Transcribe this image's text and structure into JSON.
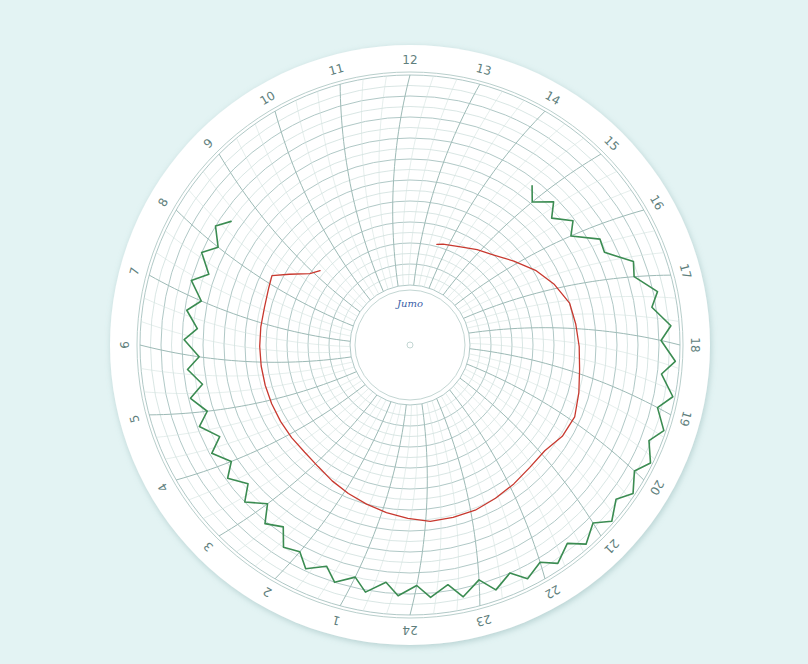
{
  "chart_data": {
    "type": "polar_line",
    "title": "Jumo",
    "xlim": [
      0,
      24
    ],
    "xticks": [
      1,
      2,
      3,
      4,
      5,
      6,
      7,
      8,
      9,
      10,
      11,
      12,
      13,
      14,
      15,
      16,
      17,
      18,
      19,
      20,
      21,
      22,
      23,
      24
    ],
    "ylim": [
      0,
      100
    ],
    "yticks": [
      0,
      5,
      10,
      15,
      20,
      25,
      30,
      35,
      40,
      45,
      50,
      55,
      60,
      65,
      70,
      75,
      80,
      85,
      90,
      95,
      100
    ],
    "grid": true,
    "tick_labels": "x",
    "series": [
      {
        "color": "#3b8c52",
        "x": [
          14.75,
          15,
          15.25,
          15.5,
          15.75,
          16,
          16.25,
          16.5,
          16.75,
          17,
          17.25,
          17.5,
          17.75,
          18,
          18.25,
          18.5,
          18.75,
          19,
          19.25,
          19.5,
          19.75,
          20,
          20.25,
          20.5,
          20.75,
          21,
          21.25,
          21.5,
          21.75,
          22,
          22.25,
          22.5,
          22.75,
          23,
          23.25,
          23.5,
          23.75,
          24,
          0.25,
          0.5,
          0.75,
          1,
          1.25,
          1.5,
          1.75,
          2,
          2.25,
          2.5,
          2.75,
          3,
          3.25,
          3.5,
          3.75,
          4,
          4.25,
          4.5,
          4.75,
          5,
          5.25,
          5.5,
          5.75,
          6,
          6.25,
          6.5,
          6.75,
          7,
          7.25,
          7.5,
          7.75,
          8,
          8.25,
          8.5
        ],
        "values": [
          67,
          61,
          68,
          62,
          69,
          64,
          75,
          74,
          85,
          83,
          92,
          88,
          96,
          91,
          98,
          92,
          99,
          93,
          99,
          94,
          99,
          94,
          99,
          94,
          99,
          93,
          98,
          92,
          97,
          92,
          96,
          90,
          95,
          88,
          94,
          87,
          92,
          86,
          91,
          85,
          91,
          85,
          90,
          84,
          89,
          83,
          85,
          77,
          81,
          73,
          80,
          73,
          79,
          73,
          79,
          72,
          79,
          73,
          79,
          72,
          78,
          72,
          79,
          73,
          79,
          73,
          80,
          73,
          80,
          74,
          80,
          75
        ]
      },
      {
        "color": "#c8392f",
        "x": [
          13.6,
          13.8,
          14.4,
          14.9,
          15.4,
          15.9,
          16.4,
          16.9,
          17.4,
          17.9,
          18.4,
          18.9,
          19.4,
          19.9,
          20.4,
          20.9,
          21.4,
          21.9,
          22.4,
          22.9,
          23.4,
          23.9,
          0.4,
          0.9,
          1.4,
          1.9,
          2.4,
          2.9,
          3.4,
          3.9,
          4.4,
          4.9,
          5.4,
          5.9,
          6.4,
          6.9,
          7.4,
          7.9,
          8.2,
          8.5,
          8.9,
          9.2
        ],
        "values": [
          21,
          22,
          24,
          27,
          30,
          35,
          41,
          46,
          50,
          51,
          52,
          53,
          55,
          57,
          56,
          53,
          53,
          54,
          55,
          56,
          56,
          56,
          54,
          52,
          50,
          48,
          46,
          44,
          43,
          43,
          43,
          43,
          43,
          43,
          43,
          43,
          43,
          44,
          45,
          38,
          30,
          27
        ]
      }
    ]
  }
}
